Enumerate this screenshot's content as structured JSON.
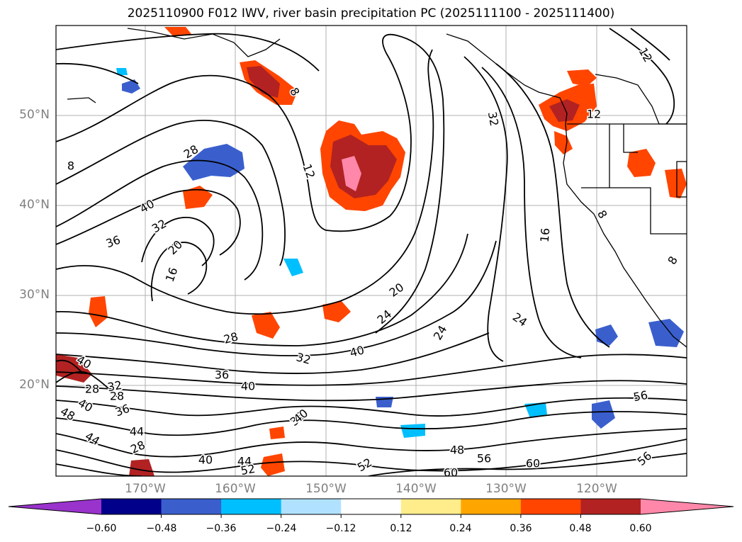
{
  "title": "2025110900 F012 IWV, river basin precipitation PC (2025111100 - 2025111400)",
  "lat_labels": [
    "50°N",
    "40°N",
    "30°N",
    "20°N"
  ],
  "lon_labels": [
    "170°W",
    "160°W",
    "150°W",
    "140°W",
    "130°W",
    "120°W"
  ],
  "colorbar": {
    "ticks": [
      "−0.60",
      "−0.48",
      "−0.36",
      "−0.24",
      "−0.12",
      "0.12",
      "0.24",
      "0.36",
      "0.48",
      "0.60"
    ],
    "colors": [
      "#9933cc",
      "#00008b",
      "#3a5fcd",
      "#00bfff",
      "#b0e2ff",
      "#ffffff",
      "#ffec8b",
      "#ffa500",
      "#ff4500",
      "#b22222",
      "#ff88aa"
    ]
  },
  "contour_labels": [
    {
      "text": "12"
    },
    {
      "text": "32"
    },
    {
      "text": "12"
    },
    {
      "text": "28"
    },
    {
      "text": "12"
    },
    {
      "text": "8"
    },
    {
      "text": "8"
    },
    {
      "text": "40"
    },
    {
      "text": "32"
    },
    {
      "text": "36"
    },
    {
      "text": "20"
    },
    {
      "text": "16"
    },
    {
      "text": "16"
    },
    {
      "text": "20"
    },
    {
      "text": "24"
    },
    {
      "text": "24"
    },
    {
      "text": "24"
    },
    {
      "text": "28"
    },
    {
      "text": "32"
    },
    {
      "text": "40"
    },
    {
      "text": "36"
    },
    {
      "text": "40"
    },
    {
      "text": "40"
    },
    {
      "text": "28"
    },
    {
      "text": "32"
    },
    {
      "text": "36"
    },
    {
      "text": "40"
    },
    {
      "text": "44"
    },
    {
      "text": "44"
    },
    {
      "text": "28"
    },
    {
      "text": "40"
    },
    {
      "text": "44"
    },
    {
      "text": "48"
    },
    {
      "text": "52"
    },
    {
      "text": "56"
    },
    {
      "text": "60"
    },
    {
      "text": "60"
    },
    {
      "text": "56"
    },
    {
      "text": "28"
    },
    {
      "text": "36"
    },
    {
      "text": "8"
    },
    {
      "text": "8"
    },
    {
      "text": "40"
    },
    {
      "text": "48"
    },
    {
      "text": "52"
    },
    {
      "text": "56"
    }
  ]
}
